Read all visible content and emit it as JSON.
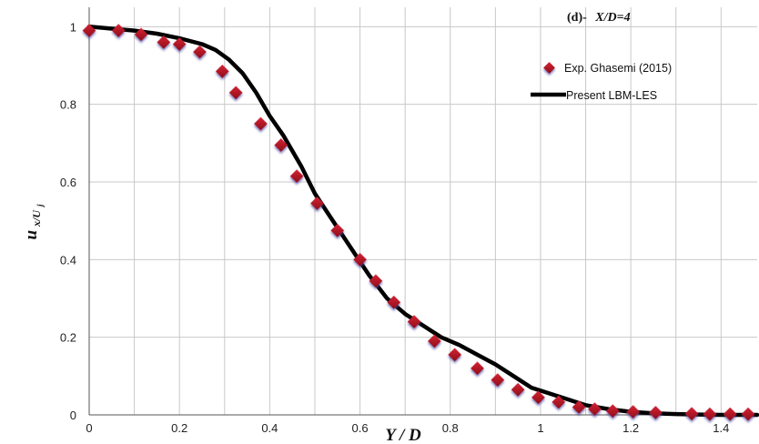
{
  "chart_data": {
    "type": "scatter",
    "panel_label": "(d)-",
    "panel_title": "X/D=4",
    "xlabel": "Y / D",
    "ylabel_main": "u",
    "ylabel_sub": "x/U",
    "ylabel_subsub": "j",
    "xlim": [
      0,
      1.48
    ],
    "ylim": [
      0,
      1.05
    ],
    "x_ticks": [
      "0",
      "0.2",
      "0.4",
      "0.6",
      "0.8",
      "1",
      "1.2",
      "1.4"
    ],
    "x_tick_values": [
      0,
      0.2,
      0.4,
      0.6,
      0.8,
      1,
      1.2,
      1.4
    ],
    "y_ticks": [
      "0",
      "0.2",
      "0.4",
      "0.6",
      "0.8",
      "1"
    ],
    "y_tick_values": [
      0,
      0.2,
      0.4,
      0.6,
      0.8,
      1
    ],
    "grid": true,
    "legend_position": "top-right",
    "colors": {
      "experiment": "#b01020",
      "experiment_shadow": "#5a5aa8",
      "simulation": "#000000",
      "grid": "#c8c8c8"
    },
    "series": [
      {
        "name": "Exp. Ghasemi (2015)",
        "kind": "markers",
        "x": [
          0,
          0.065,
          0.115,
          0.165,
          0.2,
          0.245,
          0.295,
          0.325,
          0.38,
          0.425,
          0.46,
          0.505,
          0.55,
          0.6,
          0.635,
          0.675,
          0.72,
          0.765,
          0.81,
          0.86,
          0.905,
          0.95,
          0.995,
          1.04,
          1.085,
          1.12,
          1.16,
          1.205,
          1.255,
          1.335,
          1.375,
          1.42,
          1.46
        ],
        "y": [
          0.99,
          0.99,
          0.98,
          0.96,
          0.955,
          0.935,
          0.885,
          0.83,
          0.75,
          0.695,
          0.615,
          0.545,
          0.475,
          0.4,
          0.345,
          0.29,
          0.24,
          0.19,
          0.155,
          0.12,
          0.09,
          0.065,
          0.045,
          0.033,
          0.02,
          0.015,
          0.01,
          0.008,
          0.006,
          0.003,
          0.002,
          0.002,
          0.002
        ]
      },
      {
        "name": "Present LBM-LES",
        "kind": "line",
        "x": [
          0,
          0.05,
          0.1,
          0.15,
          0.2,
          0.25,
          0.28,
          0.31,
          0.34,
          0.37,
          0.4,
          0.43,
          0.47,
          0.5,
          0.54,
          0.58,
          0.62,
          0.66,
          0.7,
          0.74,
          0.78,
          0.82,
          0.86,
          0.9,
          0.94,
          0.98,
          1.02,
          1.06,
          1.1,
          1.15,
          1.2,
          1.25,
          1.3,
          1.35,
          1.4,
          1.48
        ],
        "y": [
          1.0,
          0.995,
          0.99,
          0.982,
          0.97,
          0.955,
          0.94,
          0.915,
          0.88,
          0.83,
          0.77,
          0.72,
          0.64,
          0.57,
          0.5,
          0.43,
          0.36,
          0.3,
          0.26,
          0.23,
          0.2,
          0.18,
          0.155,
          0.13,
          0.1,
          0.07,
          0.055,
          0.04,
          0.025,
          0.015,
          0.008,
          0.004,
          0.002,
          0.001,
          0.0,
          0.0
        ]
      }
    ]
  }
}
